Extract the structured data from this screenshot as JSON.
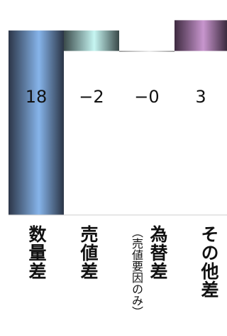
{
  "chart_data": {
    "type": "bar",
    "subtype": "waterfall",
    "categories": [
      "数量差",
      "売値差",
      "為替差",
      "その他差"
    ],
    "category_notes": [
      "",
      "",
      "（売値要因のみ）",
      ""
    ],
    "values": [
      18,
      -2,
      0,
      3
    ],
    "value_labels": [
      "18",
      "−2",
      "−0",
      "3"
    ],
    "ylim": [
      0,
      20.5
    ],
    "bar_colors": [
      "#7faee6",
      "#b8f0ec",
      "#c0c0c0",
      "#c28ac8"
    ],
    "grid": false,
    "title": "",
    "xlabel": "",
    "ylabel": ""
  }
}
